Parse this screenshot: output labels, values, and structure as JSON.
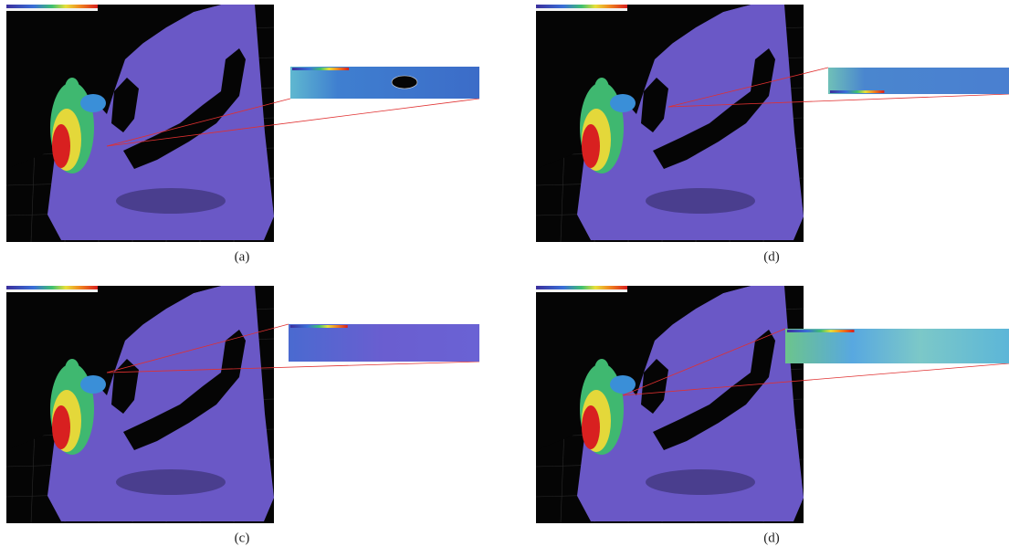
{
  "panels": [
    {
      "caption": "(a)"
    },
    {
      "caption": "(d)"
    },
    {
      "caption": "(c)"
    },
    {
      "caption": "(d)"
    }
  ]
}
